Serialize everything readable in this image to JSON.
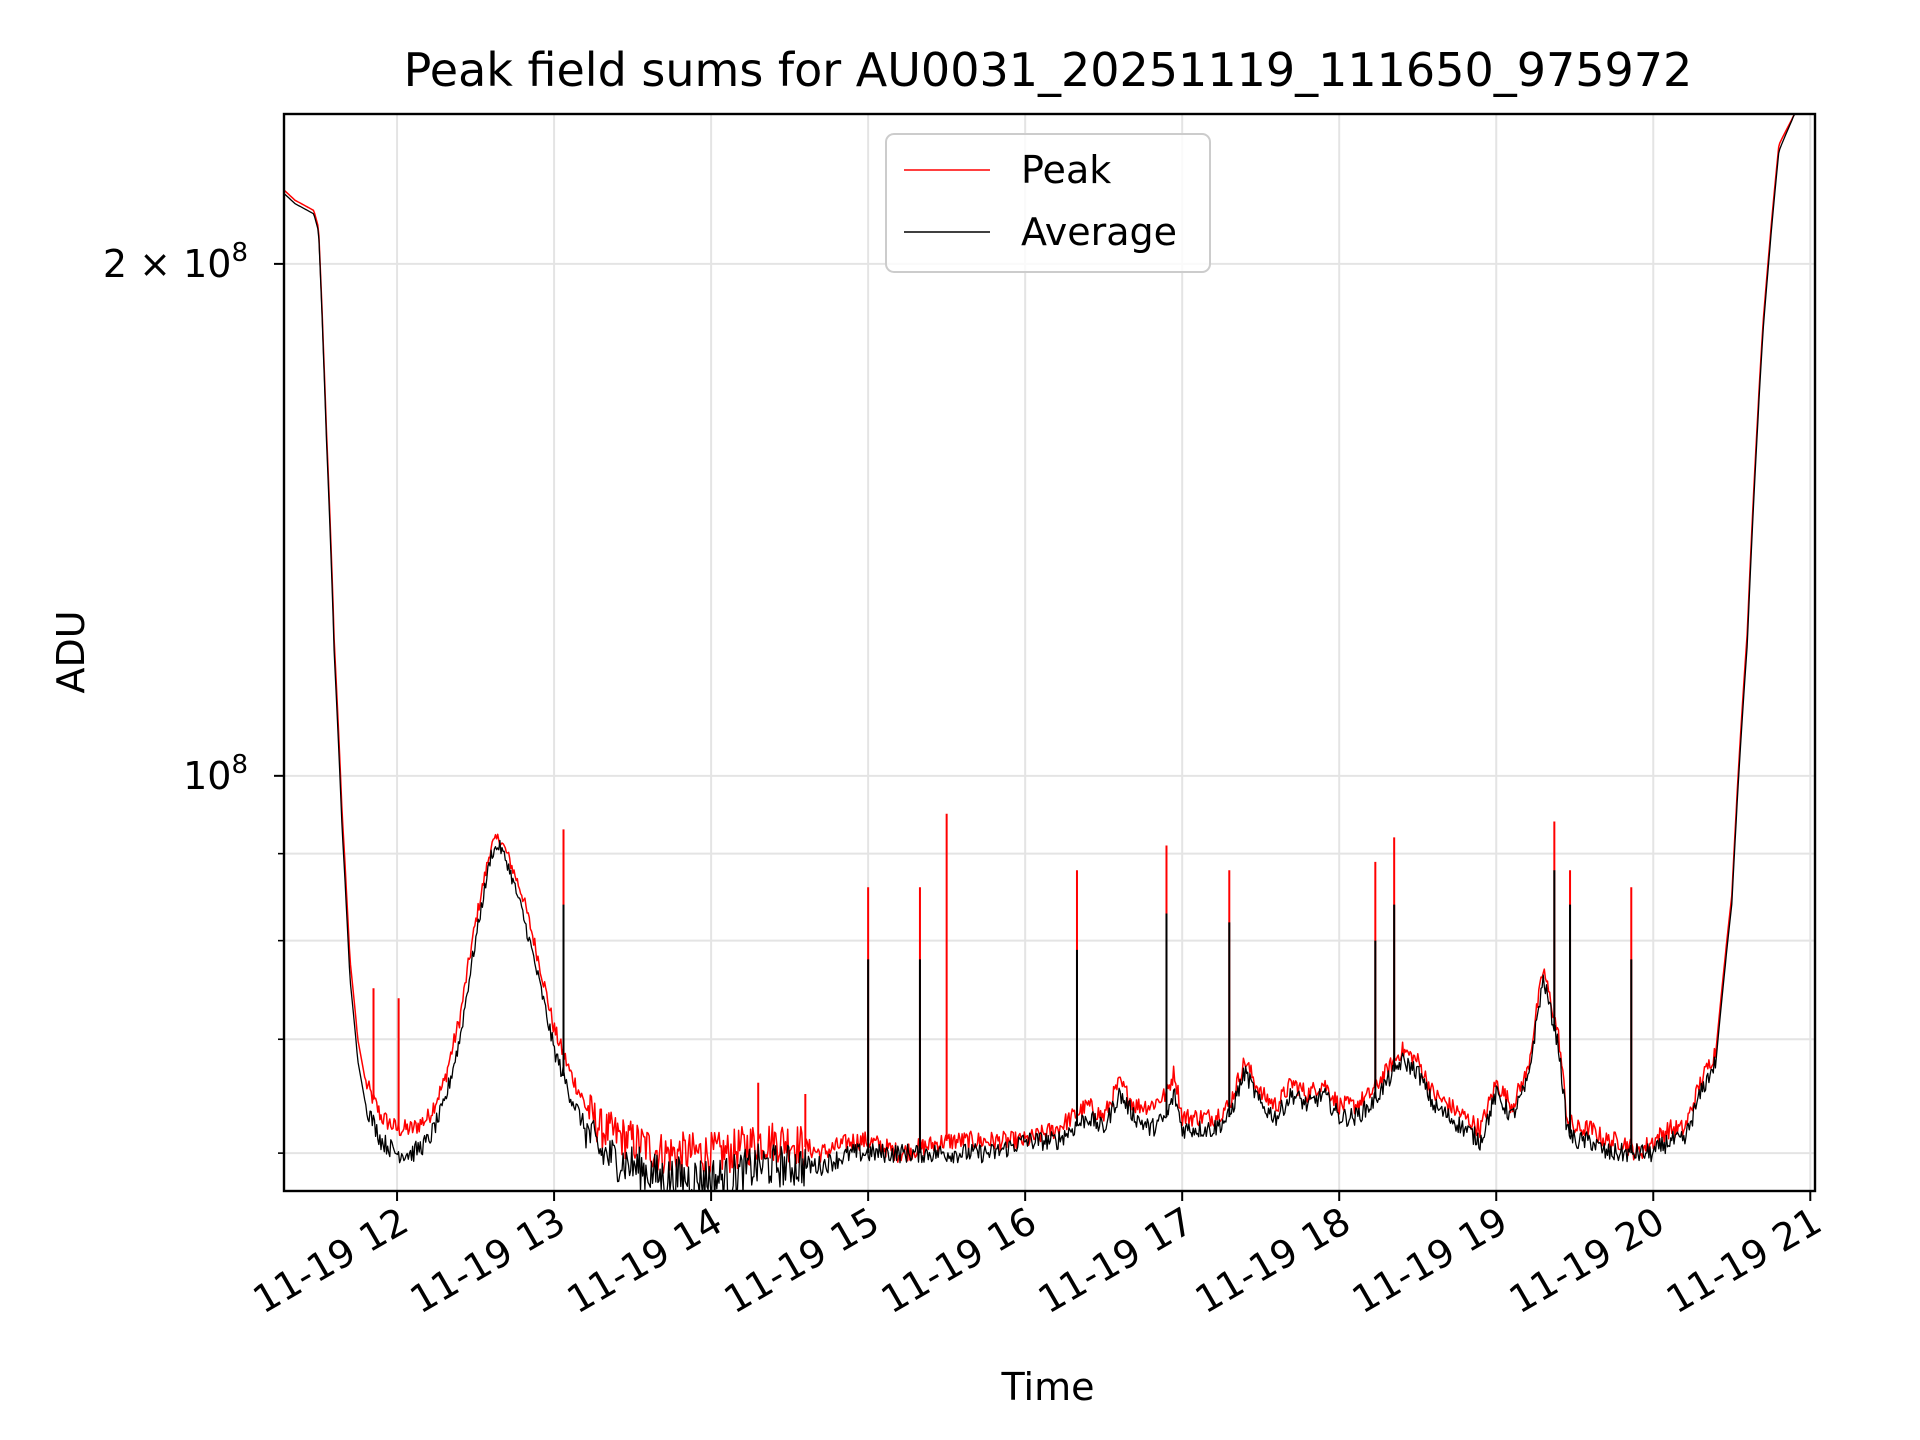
{
  "chart_data": {
    "type": "line",
    "title": "Peak field sums for AU0031_20251119_111650_975972",
    "xlabel": "Time",
    "ylabel": "ADU",
    "y_scale": "log",
    "ylim": [
      57000000,
      245000000
    ],
    "xlim_hours": [
      11.28,
      21.03
    ],
    "grid": true,
    "legend_position": "upper center",
    "x_ticks": [
      {
        "value": 12,
        "label": "11-19 12"
      },
      {
        "value": 13,
        "label": "11-19 13"
      },
      {
        "value": 14,
        "label": "11-19 14"
      },
      {
        "value": 15,
        "label": "11-19 15"
      },
      {
        "value": 16,
        "label": "11-19 16"
      },
      {
        "value": 17,
        "label": "11-19 17"
      },
      {
        "value": 18,
        "label": "11-19 18"
      },
      {
        "value": 19,
        "label": "11-19 19"
      },
      {
        "value": 20,
        "label": "11-19 20"
      },
      {
        "value": 21,
        "label": "11-19 21"
      }
    ],
    "y_major_ticks": [
      {
        "value": 100000000,
        "label": "10",
        "exp": "8"
      },
      {
        "value": 200000000,
        "label": "2 × 10",
        "exp": "8"
      }
    ],
    "y_minor_ticks": [
      60000000,
      70000000,
      80000000,
      90000000
    ],
    "series": [
      {
        "name": "Peak",
        "color": "#ff0000",
        "x_hours": [
          11.28,
          11.35,
          11.43,
          11.47,
          11.5,
          11.55,
          11.6,
          11.65,
          11.7,
          11.75,
          11.8,
          11.9,
          12.0,
          12.1,
          12.2,
          12.3,
          12.4,
          12.5,
          12.6,
          12.65,
          12.7,
          12.8,
          12.9,
          13.0,
          13.1,
          13.2,
          13.3,
          13.5,
          13.7,
          13.9,
          14.1,
          14.3,
          14.5,
          14.7,
          14.9,
          15.0,
          15.2,
          15.5,
          15.8,
          16.0,
          16.2,
          16.3,
          16.4,
          16.5,
          16.6,
          16.7,
          16.8,
          16.9,
          16.95,
          17.0,
          17.1,
          17.2,
          17.3,
          17.4,
          17.5,
          17.6,
          17.7,
          17.8,
          17.9,
          18.0,
          18.1,
          18.2,
          18.3,
          18.4,
          18.5,
          18.6,
          18.7,
          18.8,
          18.9,
          19.0,
          19.1,
          19.2,
          19.3,
          19.4,
          19.45,
          19.5,
          19.6,
          19.7,
          19.8,
          19.9,
          20.0,
          20.1,
          20.2,
          20.3,
          20.4,
          20.5,
          20.6,
          20.7,
          20.8,
          20.9,
          21.0
        ],
        "y_mln": [
          221,
          218,
          216,
          215,
          210,
          160,
          120,
          95,
          78,
          70,
          66,
          63,
          62,
          62,
          63,
          66,
          72,
          82,
          91,
          92,
          90,
          85,
          78,
          71,
          67,
          64,
          62,
          61,
          60,
          60,
          60,
          61,
          61,
          60,
          61,
          61,
          60,
          61,
          61,
          61,
          62,
          63,
          64,
          63,
          66,
          64,
          64,
          65,
          67,
          63,
          63,
          63,
          64,
          68,
          65,
          64,
          66,
          65,
          66,
          64,
          64,
          65,
          67,
          69,
          68,
          65,
          64,
          63,
          62,
          66,
          64,
          67,
          77,
          70,
          63,
          62,
          62,
          61,
          61,
          60,
          61,
          62,
          62,
          66,
          69,
          85,
          122,
          185,
          235,
          245,
          245
        ],
        "spikes": [
          {
            "x_hours": 11.85,
            "y_mln": 75
          },
          {
            "x_hours": 12.01,
            "y_mln": 74
          },
          {
            "x_hours": 12.3,
            "y_mln": 66
          },
          {
            "x_hours": 13.06,
            "y_mln": 93
          },
          {
            "x_hours": 14.3,
            "y_mln": 66
          },
          {
            "x_hours": 14.6,
            "y_mln": 65
          },
          {
            "x_hours": 15.0,
            "y_mln": 86
          },
          {
            "x_hours": 15.33,
            "y_mln": 86
          },
          {
            "x_hours": 15.5,
            "y_mln": 95
          },
          {
            "x_hours": 16.33,
            "y_mln": 88
          },
          {
            "x_hours": 16.9,
            "y_mln": 91
          },
          {
            "x_hours": 17.3,
            "y_mln": 88
          },
          {
            "x_hours": 18.23,
            "y_mln": 89
          },
          {
            "x_hours": 18.35,
            "y_mln": 92
          },
          {
            "x_hours": 19.37,
            "y_mln": 94
          },
          {
            "x_hours": 19.47,
            "y_mln": 88
          },
          {
            "x_hours": 19.86,
            "y_mln": 86
          }
        ]
      },
      {
        "name": "Average",
        "color": "#000000",
        "x_hours": [
          11.28,
          11.35,
          11.43,
          11.47,
          11.5,
          11.55,
          11.6,
          11.65,
          11.7,
          11.75,
          11.8,
          11.9,
          12.0,
          12.1,
          12.2,
          12.3,
          12.4,
          12.5,
          12.6,
          12.65,
          12.7,
          12.8,
          12.9,
          13.0,
          13.1,
          13.2,
          13.3,
          13.5,
          13.7,
          13.9,
          14.1,
          14.3,
          14.5,
          14.7,
          14.9,
          15.0,
          15.2,
          15.5,
          15.8,
          16.0,
          16.2,
          16.3,
          16.4,
          16.5,
          16.6,
          16.7,
          16.8,
          16.9,
          16.95,
          17.0,
          17.1,
          17.2,
          17.3,
          17.4,
          17.5,
          17.6,
          17.7,
          17.8,
          17.9,
          18.0,
          18.1,
          18.2,
          18.3,
          18.4,
          18.5,
          18.6,
          18.7,
          18.8,
          18.9,
          19.0,
          19.1,
          19.2,
          19.3,
          19.4,
          19.45,
          19.5,
          19.6,
          19.7,
          19.8,
          19.9,
          20.0,
          20.1,
          20.2,
          20.3,
          20.4,
          20.5,
          20.6,
          20.7,
          20.8,
          20.9,
          21.0
        ],
        "y_mln": [
          220,
          217,
          215,
          214,
          209,
          158,
          118,
          93,
          76,
          68,
          64,
          61,
          60,
          60,
          61,
          64,
          70,
          80,
          90,
          91,
          89,
          83,
          76,
          69,
          65,
          62,
          60,
          59,
          58,
          58,
          58,
          59,
          59,
          59,
          60,
          60,
          60,
          60,
          60,
          61,
          61,
          62,
          63,
          62,
          65,
          63,
          62,
          63,
          65,
          62,
          62,
          62,
          63,
          67,
          64,
          63,
          65,
          64,
          65,
          63,
          63,
          64,
          66,
          68,
          67,
          64,
          63,
          62,
          61,
          65,
          63,
          66,
          76,
          69,
          62,
          61,
          61,
          60,
          60,
          60,
          60,
          61,
          61,
          65,
          68,
          84,
          120,
          183,
          233,
          245,
          245
        ],
        "spikes": [
          {
            "x_hours": 13.06,
            "y_mln": 84
          },
          {
            "x_hours": 15.0,
            "y_mln": 78
          },
          {
            "x_hours": 15.33,
            "y_mln": 78
          },
          {
            "x_hours": 16.33,
            "y_mln": 79
          },
          {
            "x_hours": 16.9,
            "y_mln": 83
          },
          {
            "x_hours": 17.3,
            "y_mln": 82
          },
          {
            "x_hours": 18.23,
            "y_mln": 80
          },
          {
            "x_hours": 18.35,
            "y_mln": 84
          },
          {
            "x_hours": 19.37,
            "y_mln": 88
          },
          {
            "x_hours": 19.47,
            "y_mln": 84
          },
          {
            "x_hours": 19.86,
            "y_mln": 78
          }
        ]
      }
    ],
    "legend": [
      {
        "label": "Peak",
        "color": "#ff0000"
      },
      {
        "label": "Average",
        "color": "#000000"
      }
    ]
  }
}
